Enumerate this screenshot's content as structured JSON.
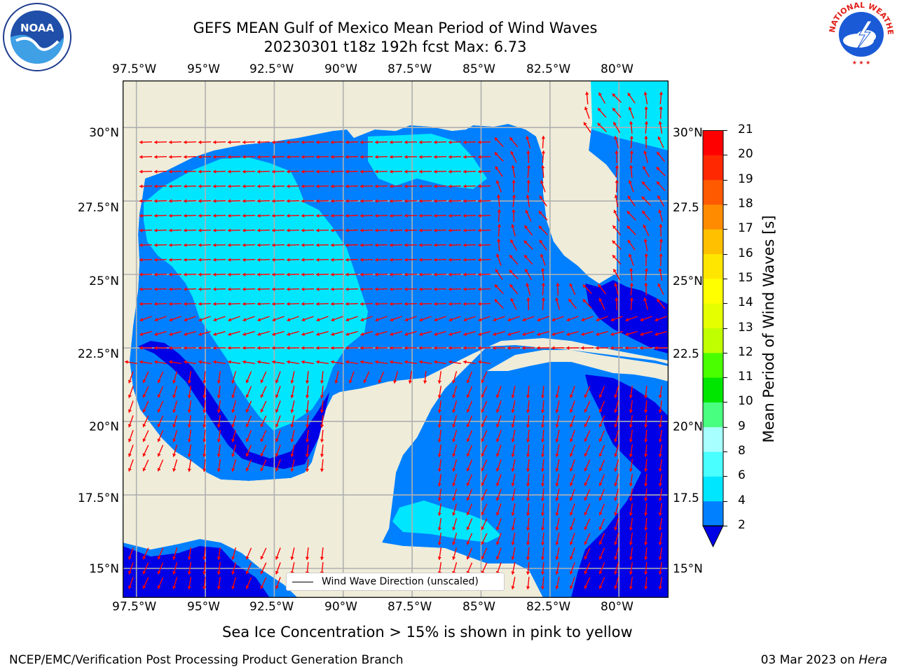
{
  "title": {
    "line1": "GEFS MEAN Gulf of Mexico Mean Period of Wind Waves",
    "line2": "20230301 t18z 192h fcst   Max: 6.73"
  },
  "logos": {
    "left": {
      "name": "noaa-logo",
      "text": "NOAA"
    },
    "right": {
      "name": "nws-logo",
      "text": "NATIONAL WEATHER SERVICE"
    }
  },
  "map": {
    "lon_labels": [
      "97.5°W",
      "95°W",
      "92.5°W",
      "90°W",
      "87.5°W",
      "85°W",
      "82.5°W",
      "80°W"
    ],
    "lat_labels": [
      "30°N",
      "27.5°N",
      "25°N",
      "22.5°N",
      "20°N",
      "17.5°N",
      "15°N"
    ],
    "lat_labels_right": [
      "30°N",
      "27.5",
      "25°N",
      "22.5",
      "20°N",
      "17.5",
      "15°N"
    ],
    "lon_range": [
      -98,
      -78.2
    ],
    "lat_range": [
      14,
      31.6
    ],
    "grid": true,
    "land_color": "#efecd9",
    "legend": {
      "entry": "Wind Wave Direction (unscaled)",
      "position": "lower-center"
    },
    "arrow_color": "#ff0000"
  },
  "colorbar": {
    "label": "Mean Period of Wind Waves [s]",
    "ticks": [
      "2",
      "4",
      "6",
      "8",
      "9",
      "10",
      "11",
      "12",
      "13",
      "14",
      "15",
      "16",
      "17",
      "18",
      "19",
      "20",
      "21"
    ],
    "colors": [
      "#0000e6",
      "#0080ff",
      "#00e6ff",
      "#49ffff",
      "#a8ffff",
      "#49ff80",
      "#00e600",
      "#49ff00",
      "#c0ff00",
      "#e6ff00",
      "#ffff00",
      "#ffe600",
      "#ffc000",
      "#ff8c00",
      "#ff5a00",
      "#ff2800",
      "#ff0000"
    ]
  },
  "caption": "Sea Ice Concentration > 15% is shown in pink to yellow",
  "footer": {
    "left": "NCEP/EMC/Verification Post Processing Product Generation Branch",
    "right_date": "03 Mar 2023 on ",
    "right_machine": "Hera"
  }
}
